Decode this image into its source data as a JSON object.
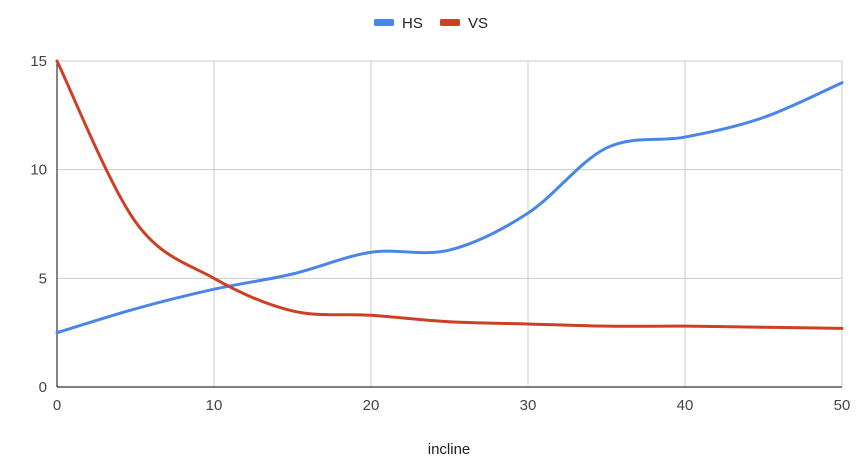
{
  "chart_data": {
    "type": "line",
    "xlabel": "incline",
    "ylabel": "",
    "xlim": [
      0,
      50
    ],
    "ylim": [
      0,
      15
    ],
    "x_ticks": [
      0,
      10,
      20,
      30,
      40,
      50
    ],
    "y_ticks": [
      0,
      5,
      10,
      15
    ],
    "grid": true,
    "legend_position": "top",
    "series": [
      {
        "name": "HS",
        "color": "#4a86e8",
        "x": [
          0,
          5,
          10,
          15,
          20,
          25,
          30,
          35,
          40,
          45,
          50
        ],
        "values": [
          2.5,
          3.6,
          4.5,
          5.2,
          6.2,
          6.3,
          8.0,
          11.0,
          11.5,
          12.4,
          14.0
        ]
      },
      {
        "name": "VS",
        "color": "#cc4125",
        "x": [
          0,
          5,
          10,
          15,
          20,
          25,
          30,
          35,
          40,
          45,
          50
        ],
        "values": [
          15.0,
          7.6,
          5.0,
          3.5,
          3.3,
          3.0,
          2.9,
          2.8,
          2.8,
          2.75,
          2.7
        ]
      }
    ]
  }
}
